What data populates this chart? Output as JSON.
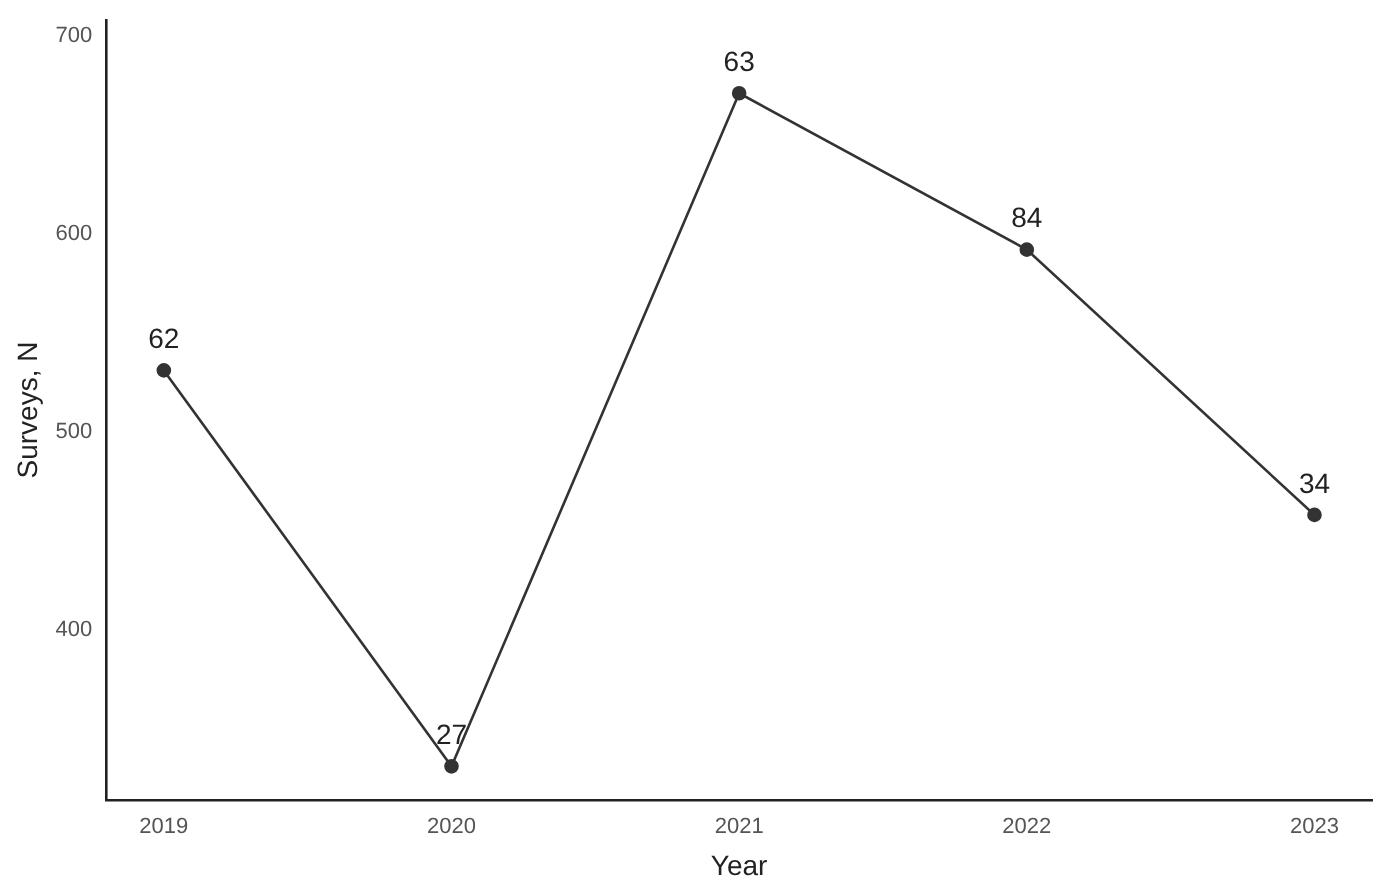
{
  "chart_data": {
    "type": "line",
    "xlabel": "Year",
    "ylabel": "Surveys, N",
    "x": [
      2019,
      2020,
      2021,
      2022,
      2023
    ],
    "series": [
      {
        "color": "#333333",
        "values": [
          531,
          331,
          671,
          592,
          458
        ]
      }
    ],
    "annotations": [
      {
        "text": "62",
        "x": 2019,
        "y": 531
      },
      {
        "text": "27",
        "x": 2020,
        "y": 331
      },
      {
        "text": "63",
        "x": 2021,
        "y": 671
      },
      {
        "text": "84",
        "x": 2022,
        "y": 592
      },
      {
        "text": "34",
        "x": 2023,
        "y": 458
      }
    ],
    "xlim": [
      2018.8,
      2023.2
    ],
    "xticks": [
      2019,
      2020,
      2021,
      2022,
      2023
    ],
    "ylim": [
      314,
      708
    ],
    "yticks": [
      400,
      500,
      600,
      700
    ],
    "grid": false,
    "legend": false,
    "marker": "circle",
    "line_style": "solid"
  }
}
